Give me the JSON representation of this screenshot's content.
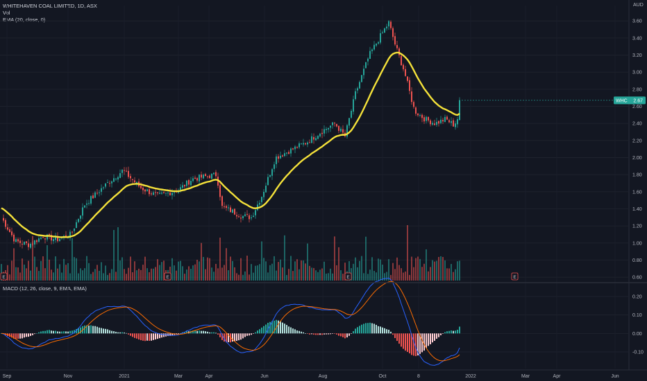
{
  "header": {
    "title": "WHITEHAVEN COAL LIMITED, 1D, ASX",
    "vol_label": "Vol",
    "ema_label": "EMA (20, close, 0)",
    "currency": "AUD"
  },
  "price_tag": {
    "symbol": "WHC",
    "value": "2.67"
  },
  "macd": {
    "label": "MACD (12, 26, close, 9, EMA, EMA)",
    "ticks": [
      "0.20",
      "0.10",
      "0.00",
      "-0.10"
    ]
  },
  "x_axis": {
    "labels": [
      "Sep",
      "Nov",
      "2021",
      "Mar",
      "Apr",
      "Jun",
      "Aug",
      "Oct",
      "8",
      "2022",
      "Mar",
      "Apr",
      "Jun"
    ]
  },
  "earnings_markers": [
    "E",
    "E",
    "E",
    "E"
  ],
  "colors": {
    "background": "#131722",
    "up": "#26a69a",
    "down": "#ef5350",
    "ema": "#f5e23a",
    "macd_line": "#2962ff",
    "signal_line": "#ff6d00",
    "tag": "#26a69a"
  },
  "chart_data": {
    "type": "candlestick",
    "title": "WHITEHAVEN COAL LIMITED, 1D, ASX",
    "y_ticks": [
      "3.60",
      "3.40",
      "3.20",
      "3.00",
      "2.80",
      "2.60",
      "2.40",
      "2.20",
      "2.00",
      "1.80",
      "1.60",
      "1.40",
      "1.20",
      "1.00",
      "0.80",
      "0.60"
    ],
    "ylim": [
      0.56,
      3.78
    ],
    "last_price": 2.67,
    "ema_period": 20,
    "price_anchors": [
      [
        0,
        1.3
      ],
      [
        20,
        1.02
      ],
      [
        40,
        0.98
      ],
      [
        60,
        1.08
      ],
      [
        80,
        1.04
      ],
      [
        100,
        1.1
      ],
      [
        120,
        1.45
      ],
      [
        150,
        1.68
      ],
      [
        175,
        1.85
      ],
      [
        200,
        1.65
      ],
      [
        225,
        1.55
      ],
      [
        255,
        1.62
      ],
      [
        275,
        1.75
      ],
      [
        310,
        1.8
      ],
      [
        318,
        1.42
      ],
      [
        330,
        1.38
      ],
      [
        345,
        1.32
      ],
      [
        360,
        1.3
      ],
      [
        375,
        1.55
      ],
      [
        395,
        2.0
      ],
      [
        415,
        2.08
      ],
      [
        440,
        2.18
      ],
      [
        460,
        2.3
      ],
      [
        480,
        2.4
      ],
      [
        495,
        2.25
      ],
      [
        510,
        2.75
      ],
      [
        530,
        3.2
      ],
      [
        548,
        3.45
      ],
      [
        558,
        3.58
      ],
      [
        568,
        3.3
      ],
      [
        580,
        3.02
      ],
      [
        595,
        2.55
      ],
      [
        610,
        2.45
      ],
      [
        625,
        2.4
      ],
      [
        640,
        2.45
      ],
      [
        652,
        2.38
      ],
      [
        660,
        2.5
      ],
      [
        667,
        2.67
      ]
    ],
    "macd_ylim": [
      -0.19,
      0.26
    ]
  }
}
